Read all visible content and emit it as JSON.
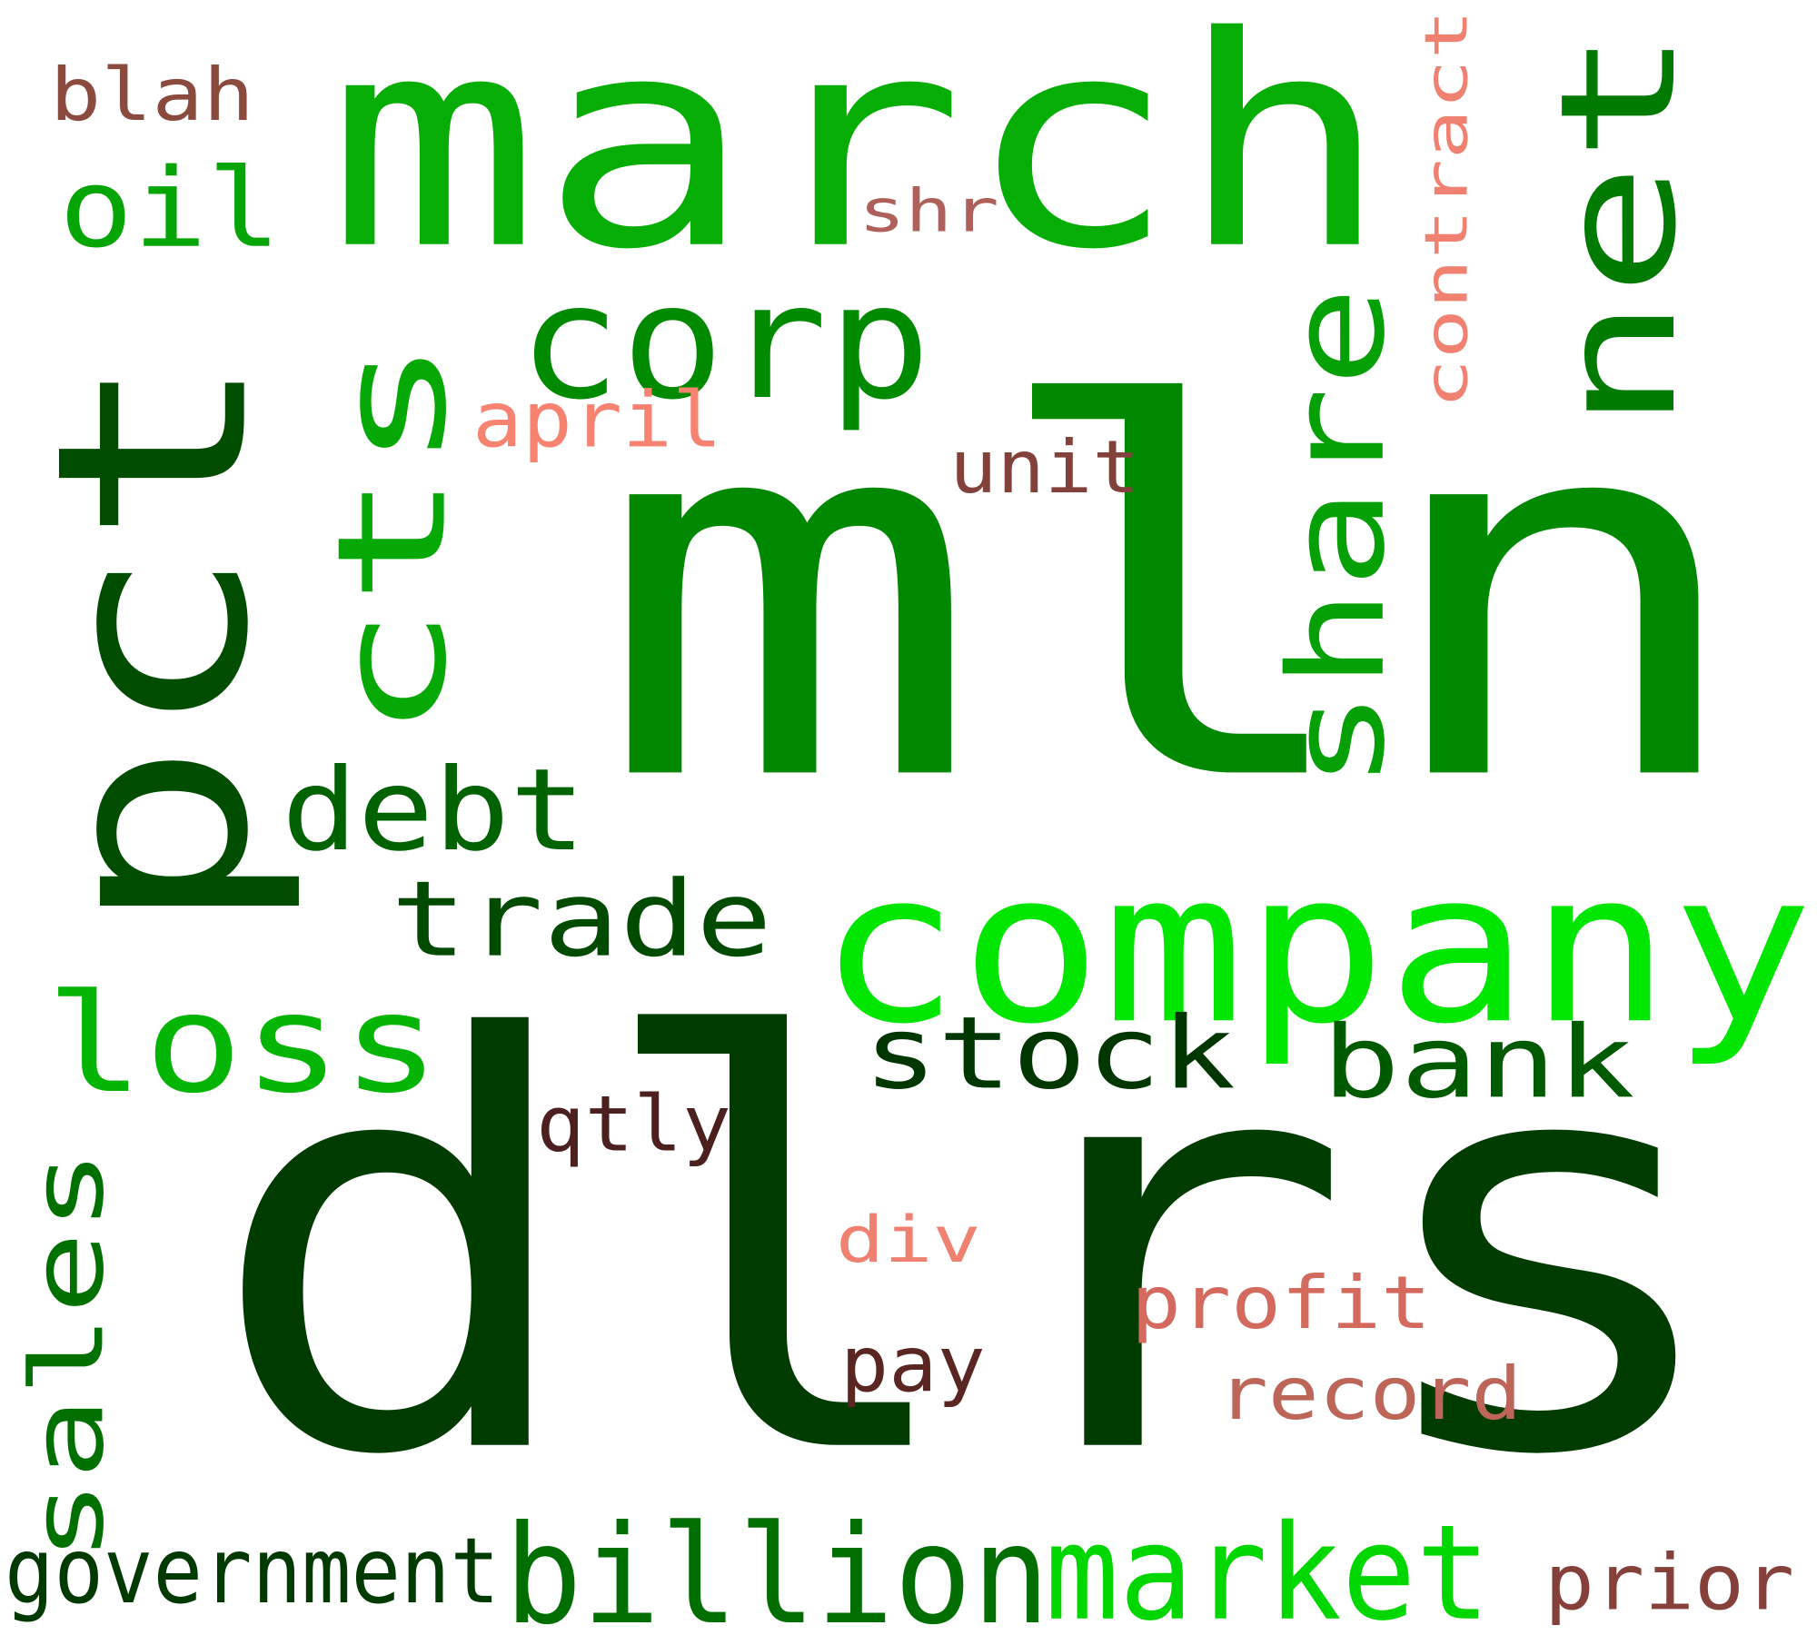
{
  "words": [
    {
      "text": "mln",
      "color": "#008800"
    },
    {
      "text": "dlrs",
      "color": "#003c00"
    },
    {
      "text": "march",
      "color": "#05ad05"
    },
    {
      "text": "pct",
      "color": "#004d00"
    },
    {
      "text": "company",
      "color": "#00e600"
    },
    {
      "text": "cts",
      "color": "#05a805"
    },
    {
      "text": "net",
      "color": "#007a00"
    },
    {
      "text": "share",
      "color": "#05a005"
    },
    {
      "text": "corp",
      "color": "#008a00"
    },
    {
      "text": "loss",
      "color": "#05b505"
    },
    {
      "text": "billion",
      "color": "#006e00"
    },
    {
      "text": "market",
      "color": "#00d600"
    },
    {
      "text": "debt",
      "color": "#006200"
    },
    {
      "text": "trade",
      "color": "#004b00"
    },
    {
      "text": "stock",
      "color": "#003600"
    },
    {
      "text": "bank",
      "color": "#005a00"
    },
    {
      "text": "sales",
      "color": "#007000"
    },
    {
      "text": "oil",
      "color": "#05a505"
    },
    {
      "text": "government",
      "color": "#003a00"
    },
    {
      "text": "contract",
      "color": "#f08070"
    },
    {
      "text": "april",
      "color": "#f88270"
    },
    {
      "text": "blah",
      "color": "#8b4a3e"
    },
    {
      "text": "shr",
      "color": "#b0605a"
    },
    {
      "text": "unit",
      "color": "#82413a"
    },
    {
      "text": "qtly",
      "color": "#4b201e"
    },
    {
      "text": "div",
      "color": "#f08070"
    },
    {
      "text": "profit",
      "color": "#d46a5e"
    },
    {
      "text": "record",
      "color": "#bc6558"
    },
    {
      "text": "pay",
      "color": "#5a2622"
    },
    {
      "text": "prior",
      "color": "#86403a"
    }
  ]
}
